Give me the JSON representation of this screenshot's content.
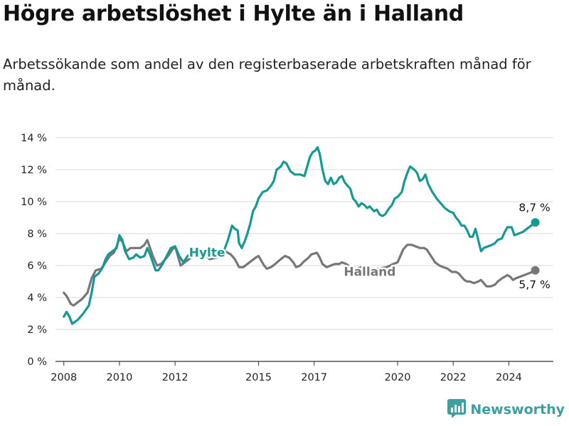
{
  "title": "Högre arbetslöshet i Hylte än i Halland",
  "subtitle": "Arbetssökande som andel av den registerbaserade arbetskraften månad för månad.",
  "brand": {
    "name": "Newsworthy",
    "icon": "bar-chart-logo-icon"
  },
  "colors": {
    "hylte": "#149a92",
    "halland": "#76777b",
    "grid": "#d9d9d9",
    "axis": "#333333"
  },
  "chart_data": {
    "type": "line",
    "ylim": [
      0,
      14
    ],
    "xlim": [
      2007.7,
      2025.6
    ],
    "y_ticks": [
      {
        "value": 0,
        "label": "0 %"
      },
      {
        "value": 2,
        "label": "2 %"
      },
      {
        "value": 4,
        "label": "4 %"
      },
      {
        "value": 6,
        "label": "6 %"
      },
      {
        "value": 8,
        "label": "8 %"
      },
      {
        "value": 10,
        "label": "10 %"
      },
      {
        "value": 12,
        "label": "12 %"
      },
      {
        "value": 14,
        "label": "14 %"
      }
    ],
    "x_ticks": [
      {
        "value": 2008,
        "label": "2008"
      },
      {
        "value": 2010,
        "label": "2010"
      },
      {
        "value": 2012,
        "label": "2012"
      },
      {
        "value": 2015,
        "label": "2015"
      },
      {
        "value": 2017,
        "label": "2017"
      },
      {
        "value": 2020,
        "label": "2020"
      },
      {
        "value": 2022,
        "label": "2022"
      },
      {
        "value": 2024,
        "label": "2024"
      }
    ],
    "grid": true,
    "series": [
      {
        "name": "Hylte",
        "color": "#149a92",
        "end_label": "8,7 %",
        "points": [
          [
            2008.0,
            2.8
          ],
          [
            2008.1,
            3.1
          ],
          [
            2008.2,
            2.8
          ],
          [
            2008.3,
            2.35
          ],
          [
            2008.5,
            2.6
          ],
          [
            2008.7,
            3.0
          ],
          [
            2008.9,
            3.5
          ],
          [
            2009.0,
            4.3
          ],
          [
            2009.1,
            5.3
          ],
          [
            2009.25,
            5.5
          ],
          [
            2009.4,
            5.9
          ],
          [
            2009.5,
            6.4
          ],
          [
            2009.6,
            6.7
          ],
          [
            2009.75,
            6.9
          ],
          [
            2009.9,
            7.1
          ],
          [
            2010.0,
            7.9
          ],
          [
            2010.1,
            7.6
          ],
          [
            2010.2,
            6.9
          ],
          [
            2010.35,
            6.4
          ],
          [
            2010.5,
            6.5
          ],
          [
            2010.6,
            6.7
          ],
          [
            2010.75,
            6.5
          ],
          [
            2010.9,
            6.6
          ],
          [
            2011.0,
            7.1
          ],
          [
            2011.1,
            6.7
          ],
          [
            2011.2,
            6.2
          ],
          [
            2011.3,
            5.7
          ],
          [
            2011.4,
            5.7
          ],
          [
            2011.55,
            6.1
          ],
          [
            2011.7,
            6.6
          ],
          [
            2011.85,
            7.1
          ],
          [
            2012.0,
            7.2
          ],
          [
            2012.15,
            6.6
          ],
          [
            2012.3,
            6.2
          ],
          [
            2012.45,
            6.6
          ],
          [
            2012.6,
            6.8
          ],
          [
            2012.75,
            7.0
          ],
          [
            2013.0,
            6.9
          ],
          [
            2013.25,
            6.7
          ],
          [
            2013.5,
            6.6
          ],
          [
            2013.75,
            6.9
          ],
          [
            2013.9,
            7.6
          ],
          [
            2014.0,
            8.2
          ],
          [
            2014.05,
            8.5
          ],
          [
            2014.15,
            8.3
          ],
          [
            2014.25,
            8.2
          ],
          [
            2014.3,
            7.4
          ],
          [
            2014.4,
            7.1
          ],
          [
            2014.5,
            7.5
          ],
          [
            2014.6,
            8.0
          ],
          [
            2014.7,
            8.6
          ],
          [
            2014.8,
            9.4
          ],
          [
            2014.9,
            9.7
          ],
          [
            2015.0,
            10.2
          ],
          [
            2015.15,
            10.6
          ],
          [
            2015.3,
            10.7
          ],
          [
            2015.45,
            11.0
          ],
          [
            2015.55,
            11.3
          ],
          [
            2015.65,
            12.0
          ],
          [
            2015.8,
            12.2
          ],
          [
            2015.9,
            12.5
          ],
          [
            2016.0,
            12.4
          ],
          [
            2016.15,
            11.9
          ],
          [
            2016.3,
            11.7
          ],
          [
            2016.5,
            11.7
          ],
          [
            2016.65,
            11.6
          ],
          [
            2016.75,
            12.2
          ],
          [
            2016.85,
            12.8
          ],
          [
            2016.95,
            13.1
          ],
          [
            2017.05,
            13.2
          ],
          [
            2017.12,
            13.4
          ],
          [
            2017.2,
            13.0
          ],
          [
            2017.3,
            12.0
          ],
          [
            2017.4,
            11.3
          ],
          [
            2017.5,
            11.1
          ],
          [
            2017.6,
            11.5
          ],
          [
            2017.7,
            11.1
          ],
          [
            2017.8,
            11.2
          ],
          [
            2017.9,
            11.5
          ],
          [
            2018.0,
            11.6
          ],
          [
            2018.1,
            11.2
          ],
          [
            2018.2,
            11.0
          ],
          [
            2018.3,
            10.8
          ],
          [
            2018.4,
            10.2
          ],
          [
            2018.5,
            10.0
          ],
          [
            2018.6,
            9.7
          ],
          [
            2018.7,
            9.9
          ],
          [
            2018.8,
            9.8
          ],
          [
            2018.9,
            9.6
          ],
          [
            2019.0,
            9.7
          ],
          [
            2019.15,
            9.4
          ],
          [
            2019.25,
            9.5
          ],
          [
            2019.35,
            9.2
          ],
          [
            2019.45,
            9.1
          ],
          [
            2019.55,
            9.2
          ],
          [
            2019.7,
            9.6
          ],
          [
            2019.8,
            9.8
          ],
          [
            2019.9,
            10.2
          ],
          [
            2020.0,
            10.3
          ],
          [
            2020.15,
            10.6
          ],
          [
            2020.25,
            11.3
          ],
          [
            2020.35,
            11.8
          ],
          [
            2020.45,
            12.2
          ],
          [
            2020.6,
            12.0
          ],
          [
            2020.7,
            11.8
          ],
          [
            2020.8,
            11.3
          ],
          [
            2020.9,
            11.4
          ],
          [
            2021.0,
            11.7
          ],
          [
            2021.1,
            11.1
          ],
          [
            2021.25,
            10.6
          ],
          [
            2021.4,
            10.2
          ],
          [
            2021.55,
            9.9
          ],
          [
            2021.7,
            9.6
          ],
          [
            2021.85,
            9.4
          ],
          [
            2022.0,
            9.3
          ],
          [
            2022.1,
            9.0
          ],
          [
            2022.2,
            8.8
          ],
          [
            2022.3,
            8.5
          ],
          [
            2022.4,
            8.5
          ],
          [
            2022.5,
            8.2
          ],
          [
            2022.6,
            7.8
          ],
          [
            2022.7,
            7.8
          ],
          [
            2022.8,
            8.3
          ],
          [
            2022.9,
            7.6
          ],
          [
            2023.0,
            6.9
          ],
          [
            2023.1,
            7.1
          ],
          [
            2023.25,
            7.2
          ],
          [
            2023.4,
            7.3
          ],
          [
            2023.5,
            7.4
          ],
          [
            2023.6,
            7.6
          ],
          [
            2023.75,
            7.7
          ],
          [
            2023.85,
            8.1
          ],
          [
            2023.95,
            8.4
          ],
          [
            2024.1,
            8.4
          ],
          [
            2024.2,
            7.9
          ],
          [
            2024.35,
            8.0
          ],
          [
            2024.5,
            8.1
          ],
          [
            2024.65,
            8.3
          ],
          [
            2024.8,
            8.5
          ],
          [
            2024.95,
            8.7
          ]
        ]
      },
      {
        "name": "Halland",
        "color": "#76777b",
        "end_label": "5,7 %",
        "points": [
          [
            2008.0,
            4.3
          ],
          [
            2008.1,
            4.1
          ],
          [
            2008.25,
            3.6
          ],
          [
            2008.35,
            3.5
          ],
          [
            2008.5,
            3.7
          ],
          [
            2008.65,
            3.9
          ],
          [
            2008.85,
            4.3
          ],
          [
            2009.0,
            5.2
          ],
          [
            2009.15,
            5.7
          ],
          [
            2009.35,
            5.8
          ],
          [
            2009.5,
            6.2
          ],
          [
            2009.65,
            6.6
          ],
          [
            2009.8,
            6.8
          ],
          [
            2009.9,
            7.2
          ],
          [
            2010.0,
            7.7
          ],
          [
            2010.1,
            7.5
          ],
          [
            2010.25,
            6.9
          ],
          [
            2010.4,
            7.1
          ],
          [
            2010.6,
            7.1
          ],
          [
            2010.75,
            7.1
          ],
          [
            2010.9,
            7.3
          ],
          [
            2011.0,
            7.6
          ],
          [
            2011.1,
            7.1
          ],
          [
            2011.2,
            6.6
          ],
          [
            2011.35,
            6.0
          ],
          [
            2011.5,
            6.1
          ],
          [
            2011.6,
            6.3
          ],
          [
            2011.75,
            6.6
          ],
          [
            2011.9,
            7.0
          ],
          [
            2012.0,
            7.2
          ],
          [
            2012.1,
            6.6
          ],
          [
            2012.2,
            6.0
          ],
          [
            2012.35,
            6.2
          ],
          [
            2012.5,
            6.4
          ],
          [
            2012.7,
            6.7
          ],
          [
            2012.9,
            6.9
          ],
          [
            2013.25,
            6.4
          ],
          [
            2013.5,
            6.5
          ],
          [
            2013.8,
            6.9
          ],
          [
            2014.0,
            6.7
          ],
          [
            2014.15,
            6.4
          ],
          [
            2014.3,
            5.9
          ],
          [
            2014.45,
            5.9
          ],
          [
            2014.6,
            6.1
          ],
          [
            2014.75,
            6.3
          ],
          [
            2014.9,
            6.5
          ],
          [
            2015.0,
            6.6
          ],
          [
            2015.1,
            6.3
          ],
          [
            2015.2,
            6.0
          ],
          [
            2015.3,
            5.8
          ],
          [
            2015.45,
            5.9
          ],
          [
            2015.6,
            6.1
          ],
          [
            2015.8,
            6.4
          ],
          [
            2015.95,
            6.6
          ],
          [
            2016.1,
            6.5
          ],
          [
            2016.25,
            6.2
          ],
          [
            2016.35,
            5.9
          ],
          [
            2016.5,
            6.0
          ],
          [
            2016.6,
            6.2
          ],
          [
            2016.8,
            6.5
          ],
          [
            2016.9,
            6.7
          ],
          [
            2017.1,
            6.8
          ],
          [
            2017.2,
            6.5
          ],
          [
            2017.3,
            6.1
          ],
          [
            2017.45,
            5.9
          ],
          [
            2017.6,
            6.0
          ],
          [
            2017.75,
            6.1
          ],
          [
            2017.9,
            6.1
          ],
          [
            2018.0,
            6.2
          ],
          [
            2018.15,
            6.1
          ],
          [
            2018.3,
            5.9
          ],
          [
            2018.5,
            5.8
          ],
          [
            2018.7,
            5.9
          ],
          [
            2019.0,
            5.8
          ],
          [
            2019.3,
            5.8
          ],
          [
            2019.6,
            5.9
          ],
          [
            2019.85,
            6.1
          ],
          [
            2020.0,
            6.2
          ],
          [
            2020.1,
            6.6
          ],
          [
            2020.2,
            7.0
          ],
          [
            2020.35,
            7.3
          ],
          [
            2020.5,
            7.3
          ],
          [
            2020.65,
            7.2
          ],
          [
            2020.8,
            7.1
          ],
          [
            2020.95,
            7.1
          ],
          [
            2021.05,
            7.0
          ],
          [
            2021.2,
            6.6
          ],
          [
            2021.35,
            6.2
          ],
          [
            2021.5,
            6.0
          ],
          [
            2021.65,
            5.9
          ],
          [
            2021.8,
            5.8
          ],
          [
            2021.95,
            5.6
          ],
          [
            2022.1,
            5.6
          ],
          [
            2022.2,
            5.5
          ],
          [
            2022.3,
            5.3
          ],
          [
            2022.4,
            5.1
          ],
          [
            2022.5,
            5.0
          ],
          [
            2022.6,
            5.0
          ],
          [
            2022.75,
            4.9
          ],
          [
            2022.9,
            5.0
          ],
          [
            2023.0,
            5.1
          ],
          [
            2023.1,
            4.9
          ],
          [
            2023.2,
            4.7
          ],
          [
            2023.35,
            4.7
          ],
          [
            2023.5,
            4.8
          ],
          [
            2023.6,
            5.0
          ],
          [
            2023.75,
            5.2
          ],
          [
            2023.85,
            5.3
          ],
          [
            2023.95,
            5.4
          ],
          [
            2024.05,
            5.3
          ],
          [
            2024.15,
            5.1
          ],
          [
            2024.25,
            5.2
          ],
          [
            2024.4,
            5.3
          ],
          [
            2024.55,
            5.4
          ],
          [
            2024.7,
            5.5
          ],
          [
            2024.85,
            5.6
          ],
          [
            2024.95,
            5.7
          ]
        ]
      }
    ]
  }
}
